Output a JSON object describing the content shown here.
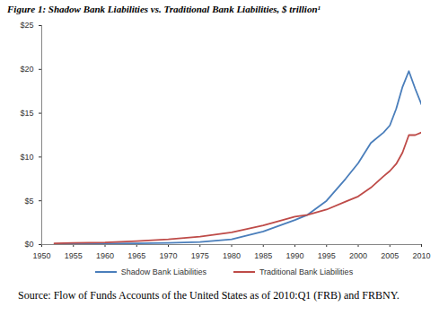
{
  "chart_data": {
    "type": "line",
    "title": "Figure 1: Shadow Bank Liabilities vs. Traditional Bank Liabilities, $ trillion¹",
    "source": "Source: Flow of Funds Accounts of the United States as of 2010:Q1 (FRB) and FRBNY.",
    "x": [
      1952,
      1955,
      1960,
      1965,
      1970,
      1975,
      1980,
      1985,
      1990,
      1992,
      1995,
      1998,
      2000,
      2002,
      2004,
      2005,
      2006,
      2007,
      2008,
      2009,
      2010
    ],
    "series": [
      {
        "name": "Shadow Bank Liabilities",
        "color": "#4a7ebb",
        "values": [
          0.05,
          0.07,
          0.1,
          0.15,
          0.2,
          0.3,
          0.6,
          1.5,
          2.8,
          3.4,
          5.0,
          7.5,
          9.3,
          11.6,
          12.8,
          13.6,
          15.5,
          18.0,
          19.8,
          17.8,
          16.0
        ]
      },
      {
        "name": "Traditional Bank Liabilities",
        "color": "#be4b48",
        "values": [
          0.15,
          0.2,
          0.25,
          0.4,
          0.6,
          0.9,
          1.4,
          2.2,
          3.2,
          3.4,
          4.0,
          4.9,
          5.5,
          6.5,
          7.8,
          8.4,
          9.2,
          10.5,
          12.5,
          12.5,
          12.8
        ]
      }
    ],
    "xlim": [
      1950,
      2010
    ],
    "xticks": [
      1950,
      1955,
      1960,
      1965,
      1970,
      1975,
      1980,
      1985,
      1990,
      1995,
      2000,
      2005,
      2010
    ],
    "ylim": [
      0,
      25
    ],
    "yticks": [
      {
        "value": 0,
        "label": "$0"
      },
      {
        "value": 5,
        "label": "$5"
      },
      {
        "value": 10,
        "label": "$10"
      },
      {
        "value": 15,
        "label": "$15"
      },
      {
        "value": 20,
        "label": "$20"
      },
      {
        "value": 25,
        "label": "$25"
      }
    ],
    "grid": false,
    "legend": "bottom"
  }
}
